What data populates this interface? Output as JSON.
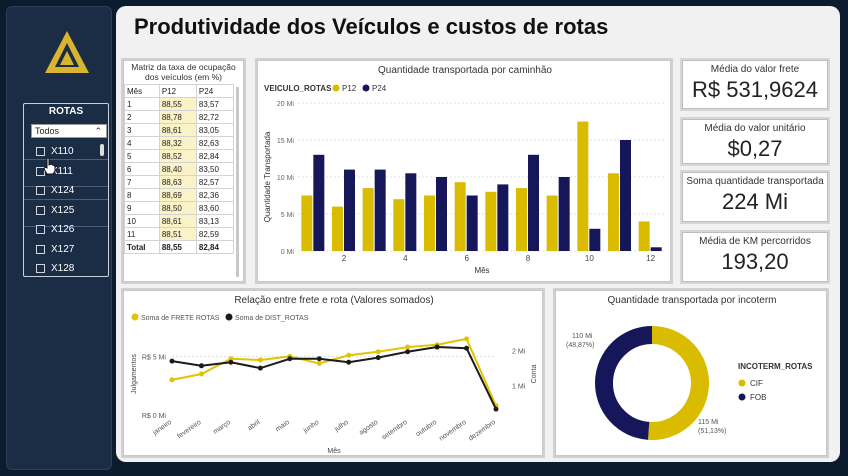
{
  "header": {
    "title": "Produtividade dos Veículos e custos de rotas"
  },
  "colors": {
    "gold": "#d9bb00",
    "navy": "#15175a",
    "bg": "#0d1b2e",
    "sidebar": "#1b2c45"
  },
  "slicer": {
    "title": "ROTAS",
    "dropdown": "Todos",
    "items": [
      "X110",
      "X111",
      "X124",
      "X125",
      "X126",
      "X127",
      "X128"
    ]
  },
  "matrix": {
    "title": "Matriz da taxa de ocupação dos veículos (em %)",
    "headers": [
      "Mês",
      "P12",
      "P24"
    ],
    "rows": [
      [
        "1",
        "88,55",
        "83,57"
      ],
      [
        "2",
        "88,78",
        "82,72"
      ],
      [
        "3",
        "88,61",
        "83,05"
      ],
      [
        "4",
        "88,32",
        "82,63"
      ],
      [
        "5",
        "88,52",
        "82,84"
      ],
      [
        "6",
        "88,40",
        "83,50"
      ],
      [
        "7",
        "88,63",
        "82,57"
      ],
      [
        "8",
        "88,69",
        "82,36"
      ],
      [
        "9",
        "88,50",
        "83,60"
      ],
      [
        "10",
        "88,61",
        "83,13"
      ],
      [
        "11",
        "88,51",
        "82,59"
      ]
    ],
    "total": [
      "Total",
      "88,55",
      "82,84"
    ]
  },
  "cards": [
    {
      "label": "Média do valor frete",
      "value": "R$ 531,9624"
    },
    {
      "label": "Média do valor unitário",
      "value": "$0,27"
    },
    {
      "label": "Soma quantidade transportada",
      "value": "224 Mi"
    },
    {
      "label": "Média de KM percorridos",
      "value": "193,20"
    }
  ],
  "chart_data": [
    {
      "type": "bar",
      "title": "Quantidade transportada por caminhão",
      "legend_title": "VEICULO_ROTAS",
      "xlabel": "Mês",
      "ylabel": "Quantidade Transportada",
      "ylim": [
        0,
        20
      ],
      "yticks": [
        "0 Mi",
        "5 Mi",
        "10 Mi",
        "15 Mi",
        "20 Mi"
      ],
      "categories": [
        1,
        2,
        3,
        4,
        5,
        6,
        7,
        8,
        9,
        10,
        11,
        12
      ],
      "xticks": [
        "2",
        "4",
        "6",
        "8",
        "10",
        "12"
      ],
      "series": [
        {
          "name": "P12",
          "color": "#d9bb00",
          "values": [
            7.5,
            6,
            8.5,
            7,
            7.5,
            9.3,
            8,
            8.5,
            7.5,
            17.5,
            10.5,
            4
          ]
        },
        {
          "name": "P24",
          "color": "#15175a",
          "values": [
            13,
            11,
            11,
            10.5,
            10,
            7.5,
            9,
            13,
            10,
            3,
            15,
            0.5
          ]
        }
      ]
    },
    {
      "type": "line",
      "title": "Relação entre frete e rota (Valores somados)",
      "xlabel": "Mês",
      "ylabel_left": "Julgamentos",
      "ylabel_right": "Conta",
      "legend": [
        "Soma de FRETE ROTAS",
        "Soma de DIST_ROTAS"
      ],
      "left_ticks": [
        "R$ 0 Mi",
        "R$ 5 Mi"
      ],
      "right_ticks": [
        "1 Mi",
        "2 Mi"
      ],
      "categories": [
        "janeiro",
        "fevereiro",
        "março",
        "abril",
        "maio",
        "junho",
        "julho",
        "agosto",
        "setembro",
        "outubro",
        "novembro",
        "dezembro"
      ],
      "series": [
        {
          "name": "Soma de FRETE ROTAS",
          "color": "#e3c200",
          "values": [
            3.0,
            3.5,
            4.8,
            4.7,
            5.0,
            4.4,
            5.1,
            5.4,
            5.8,
            6.0,
            6.5,
            0.8
          ]
        },
        {
          "name": "Soma de DIST_ROTAS",
          "color": "#1b1b1b",
          "values": [
            4.6,
            4.2,
            4.5,
            4.0,
            4.8,
            4.8,
            4.5,
            4.9,
            5.4,
            5.8,
            5.7,
            0.5
          ]
        }
      ]
    },
    {
      "type": "pie",
      "title": "Quantidade transportada por incoterm",
      "legend_title": "INCOTERM_ROTAS",
      "slices": [
        {
          "label": "CIF",
          "value": 115,
          "pct": "51,13%",
          "text": "115 Mi",
          "color": "#d9bb00"
        },
        {
          "label": "FOB",
          "value": 110,
          "pct": "48,87%",
          "text": "110 Mi",
          "color": "#15175a"
        }
      ]
    }
  ]
}
